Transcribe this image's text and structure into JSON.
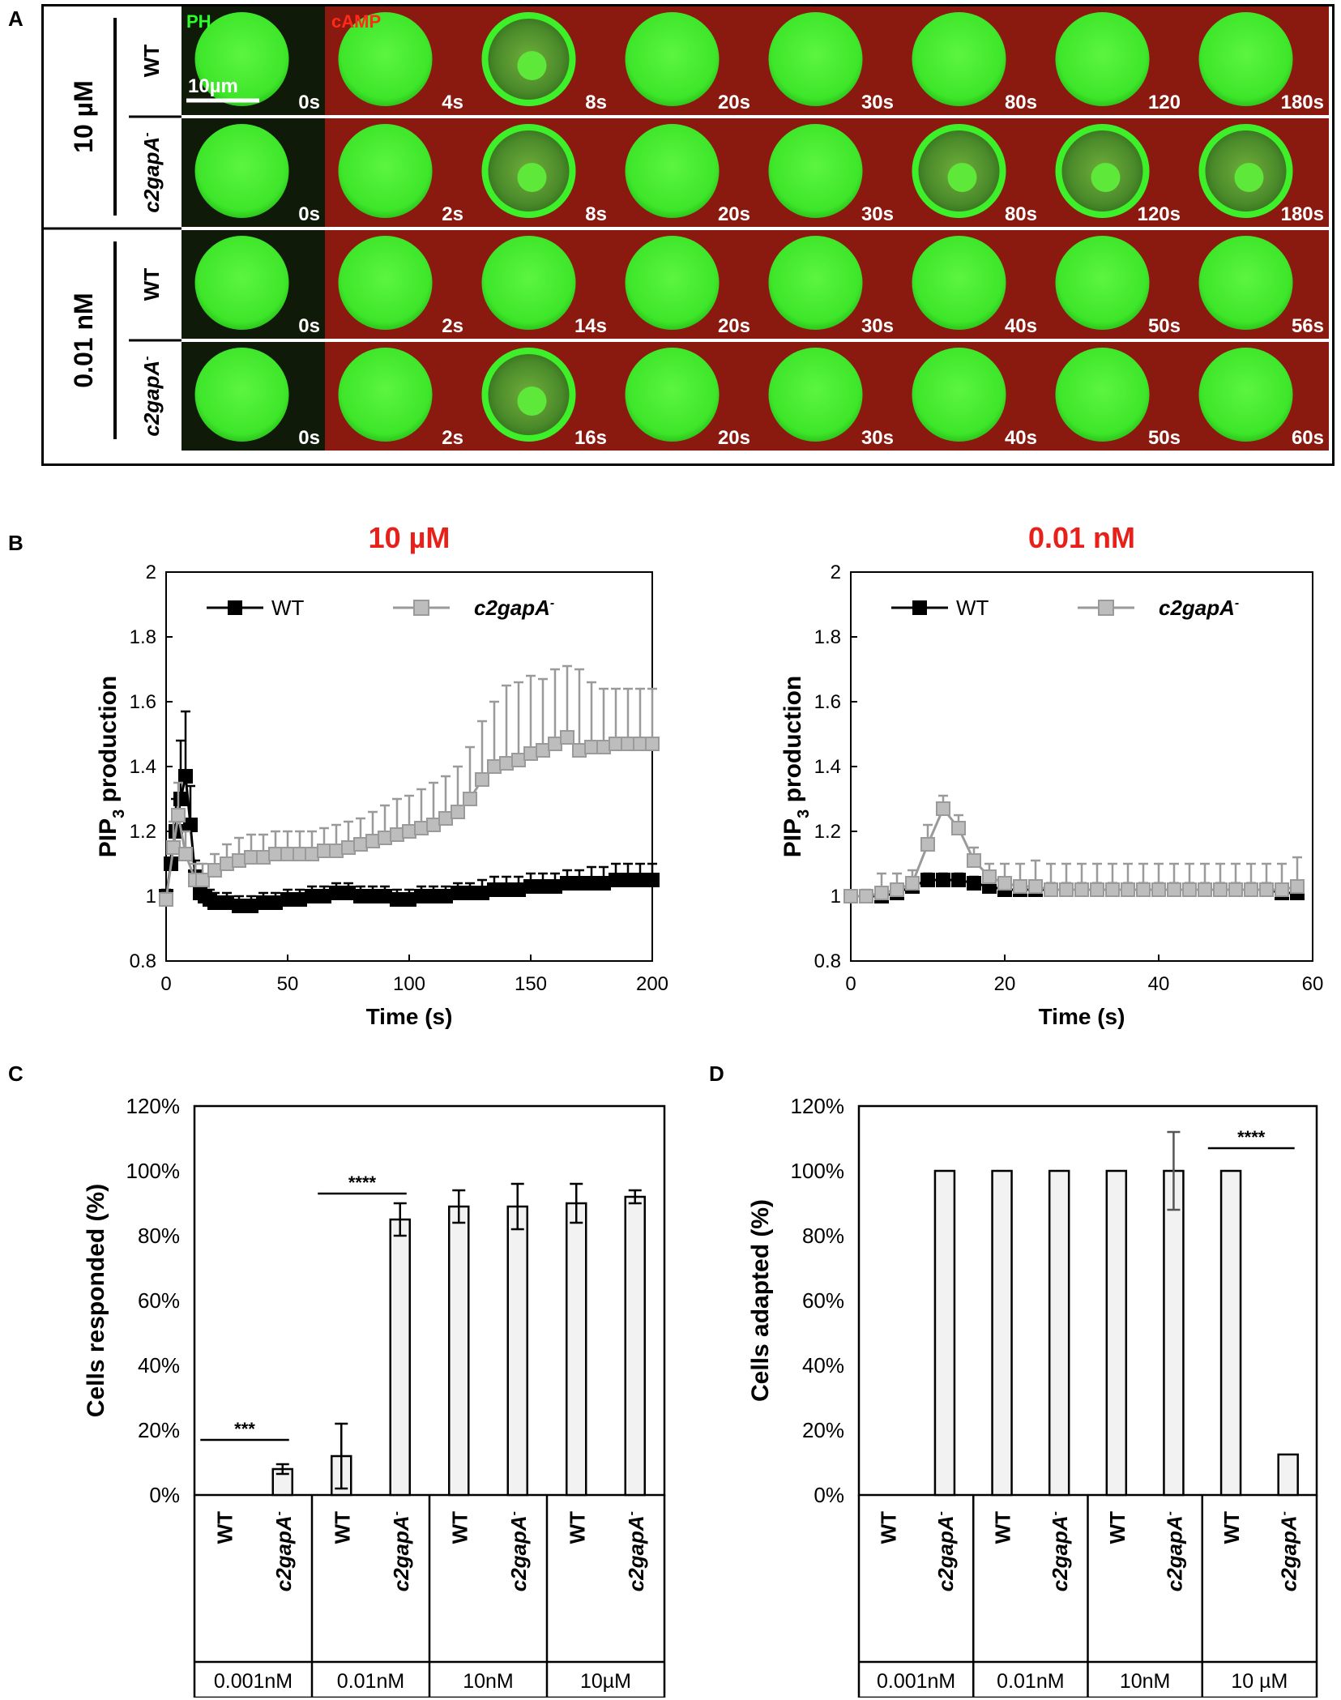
{
  "panel_labels": {
    "a": "A",
    "b": "B",
    "c": "C",
    "d": "D"
  },
  "panelA": {
    "rows": [
      {
        "condition": "10 µM",
        "strain": "WT",
        "times": [
          "0s",
          "4s",
          "8s",
          "20s",
          "30s",
          "80s",
          "120",
          "180s"
        ],
        "membrane_frames": [
          2
        ]
      },
      {
        "condition": "10 µM",
        "strain": "c2gapA-",
        "times": [
          "0s",
          "2s",
          "8s",
          "20s",
          "30s",
          "80s",
          "120s",
          "180s"
        ],
        "membrane_frames": [
          2,
          5,
          6,
          7
        ]
      },
      {
        "condition": "0.01 nM",
        "strain": "WT",
        "times": [
          "0s",
          "2s",
          "14s",
          "20s",
          "30s",
          "40s",
          "50s",
          "56s"
        ],
        "membrane_frames": []
      },
      {
        "condition": "0.01 nM",
        "strain": "c2gapA-",
        "times": [
          "0s",
          "2s",
          "16s",
          "20s",
          "30s",
          "40s",
          "50s",
          "60s"
        ],
        "membrane_frames": [
          2
        ]
      }
    ],
    "condition_labels": [
      "10 µM",
      "0.01 nM"
    ],
    "strain_wt": "WT",
    "strain_mut": "c2gapA",
    "superscript": "-",
    "channel_ph": "PH",
    "channel_camp": "cAMP",
    "scalebar_label": "10µm",
    "colors": {
      "cell": "#3ee62a",
      "bg_ph": "#101a08",
      "bg_camp": "#8a1a10",
      "ph_text": "#2aff2a",
      "camp_text": "#ff2a1a"
    }
  },
  "chart_data": [
    {
      "id": "B1",
      "type": "line",
      "title": "10 µM",
      "xlabel": "Time (s)",
      "ylabel": "PIP3 production",
      "ylabel_main": "PIP",
      "ylabel_sub": "3",
      "ylabel_rest": " production",
      "xlim": [
        0,
        200
      ],
      "ylim": [
        0.8,
        2
      ],
      "xticks": [
        0,
        50,
        100,
        150,
        200
      ],
      "yticks": [
        0.8,
        1,
        1.2,
        1.4,
        1.6,
        1.8,
        2
      ],
      "legend": [
        "WT",
        "c2gapA-"
      ],
      "series": [
        {
          "name": "WT",
          "x": [
            0,
            2,
            4,
            6,
            8,
            10,
            12,
            14,
            16,
            18,
            20,
            25,
            30,
            35,
            40,
            45,
            50,
            55,
            60,
            65,
            70,
            75,
            80,
            85,
            90,
            95,
            100,
            105,
            110,
            115,
            120,
            125,
            130,
            135,
            140,
            145,
            150,
            155,
            160,
            165,
            170,
            175,
            180,
            185,
            190,
            195,
            200
          ],
          "y": [
            1.0,
            1.1,
            1.2,
            1.3,
            1.37,
            1.22,
            1.06,
            1.01,
            1.0,
            0.99,
            0.98,
            0.98,
            0.97,
            0.97,
            0.98,
            0.98,
            0.99,
            0.99,
            1.0,
            1.0,
            1.01,
            1.01,
            1.0,
            1.0,
            1.0,
            0.99,
            0.99,
            1.0,
            1.0,
            1.0,
            1.01,
            1.01,
            1.01,
            1.02,
            1.02,
            1.02,
            1.03,
            1.03,
            1.03,
            1.04,
            1.04,
            1.04,
            1.04,
            1.05,
            1.05,
            1.05,
            1.05
          ],
          "err": [
            0.02,
            0.05,
            0.1,
            0.18,
            0.2,
            0.12,
            0.05,
            0.04,
            0.03,
            0.03,
            0.03,
            0.03,
            0.03,
            0.03,
            0.03,
            0.03,
            0.03,
            0.03,
            0.03,
            0.03,
            0.03,
            0.03,
            0.03,
            0.03,
            0.03,
            0.03,
            0.03,
            0.03,
            0.03,
            0.03,
            0.03,
            0.03,
            0.04,
            0.04,
            0.04,
            0.04,
            0.04,
            0.04,
            0.04,
            0.04,
            0.04,
            0.05,
            0.05,
            0.05,
            0.05,
            0.05,
            0.05
          ]
        },
        {
          "name": "c2gapA-",
          "x": [
            0,
            3,
            5,
            8,
            12,
            15,
            20,
            25,
            30,
            35,
            40,
            45,
            50,
            55,
            60,
            65,
            70,
            75,
            80,
            85,
            90,
            95,
            100,
            105,
            110,
            115,
            120,
            125,
            130,
            135,
            140,
            145,
            150,
            155,
            160,
            165,
            170,
            175,
            180,
            185,
            190,
            195,
            200
          ],
          "y": [
            0.99,
            1.15,
            1.25,
            1.13,
            1.05,
            1.05,
            1.08,
            1.1,
            1.11,
            1.12,
            1.12,
            1.13,
            1.13,
            1.13,
            1.13,
            1.14,
            1.14,
            1.15,
            1.16,
            1.17,
            1.18,
            1.19,
            1.2,
            1.21,
            1.22,
            1.24,
            1.26,
            1.3,
            1.36,
            1.4,
            1.41,
            1.42,
            1.44,
            1.45,
            1.47,
            1.49,
            1.45,
            1.46,
            1.46,
            1.47,
            1.47,
            1.47,
            1.47
          ],
          "err": [
            0.02,
            0.08,
            0.1,
            0.07,
            0.05,
            0.05,
            0.05,
            0.06,
            0.07,
            0.07,
            0.07,
            0.07,
            0.07,
            0.07,
            0.07,
            0.07,
            0.08,
            0.08,
            0.08,
            0.09,
            0.1,
            0.11,
            0.11,
            0.12,
            0.13,
            0.13,
            0.14,
            0.16,
            0.18,
            0.2,
            0.24,
            0.24,
            0.24,
            0.22,
            0.23,
            0.22,
            0.25,
            0.2,
            0.18,
            0.17,
            0.17,
            0.17,
            0.17
          ]
        }
      ]
    },
    {
      "id": "B2",
      "type": "line",
      "title": "0.01 nM",
      "xlabel": "Time (s)",
      "ylabel": "PIP3 production",
      "ylabel_main": "PIP",
      "ylabel_sub": "3",
      "ylabel_rest": " production",
      "xlim": [
        0,
        60
      ],
      "ylim": [
        0.8,
        2
      ],
      "xticks": [
        0,
        20,
        40,
        60
      ],
      "yticks": [
        0.8,
        1,
        1.2,
        1.4,
        1.6,
        1.8,
        2
      ],
      "legend": [
        "WT",
        "c2gapA-"
      ],
      "series": [
        {
          "name": "WT",
          "x": [
            0,
            2,
            4,
            6,
            8,
            10,
            12,
            14,
            16,
            18,
            20,
            22,
            24,
            26,
            28,
            30,
            32,
            34,
            36,
            38,
            40,
            42,
            44,
            46,
            48,
            50,
            52,
            54,
            56,
            58
          ],
          "y": [
            1.0,
            1.0,
            1.0,
            1.01,
            1.03,
            1.05,
            1.05,
            1.05,
            1.04,
            1.03,
            1.02,
            1.02,
            1.02,
            1.02,
            1.02,
            1.02,
            1.02,
            1.02,
            1.02,
            1.02,
            1.02,
            1.02,
            1.02,
            1.02,
            1.02,
            1.02,
            1.02,
            1.02,
            1.01,
            1.01
          ],
          "err": [
            0.01,
            0.01,
            0.01,
            0.02,
            0.02,
            0.02,
            0.02,
            0.02,
            0.02,
            0.02,
            0.02,
            0.02,
            0.02,
            0.02,
            0.02,
            0.02,
            0.02,
            0.02,
            0.02,
            0.02,
            0.02,
            0.02,
            0.02,
            0.02,
            0.02,
            0.02,
            0.02,
            0.02,
            0.02,
            0.02
          ]
        },
        {
          "name": "c2gapA-",
          "x": [
            0,
            2,
            4,
            6,
            8,
            10,
            12,
            14,
            16,
            18,
            20,
            22,
            24,
            26,
            28,
            30,
            32,
            34,
            36,
            38,
            40,
            42,
            44,
            46,
            48,
            50,
            52,
            54,
            56,
            58
          ],
          "y": [
            1.0,
            1.0,
            1.01,
            1.02,
            1.04,
            1.16,
            1.27,
            1.21,
            1.11,
            1.06,
            1.04,
            1.03,
            1.03,
            1.02,
            1.02,
            1.02,
            1.02,
            1.02,
            1.02,
            1.02,
            1.02,
            1.02,
            1.02,
            1.02,
            1.02,
            1.02,
            1.02,
            1.02,
            1.02,
            1.03
          ],
          "err": [
            0.01,
            0.02,
            0.06,
            0.05,
            0.04,
            0.06,
            0.04,
            0.04,
            0.04,
            0.04,
            0.06,
            0.07,
            0.08,
            0.08,
            0.08,
            0.08,
            0.08,
            0.08,
            0.08,
            0.08,
            0.08,
            0.08,
            0.08,
            0.08,
            0.08,
            0.08,
            0.08,
            0.08,
            0.08,
            0.09
          ]
        }
      ]
    },
    {
      "id": "C",
      "type": "bar",
      "ylabel": "Cells responded (%)",
      "ylim": [
        0,
        120
      ],
      "yticks": [
        "0%",
        "20%",
        "40%",
        "60%",
        "80%",
        "100%",
        "120%"
      ],
      "groups": [
        "0.001nM",
        "0.01nM",
        "10nM",
        "10µM"
      ],
      "categories": [
        "WT",
        "c2gapA-",
        "WT",
        "c2gapA-",
        "WT",
        "c2gapA-",
        "WT",
        "c2gapA-"
      ],
      "values": [
        0,
        8,
        12,
        85,
        89,
        89,
        90,
        92
      ],
      "errors": [
        0,
        1.5,
        10,
        5,
        5,
        7,
        6,
        2
      ],
      "significance": [
        {
          "from": 0,
          "to": 1,
          "label": "***",
          "y": 17
        },
        {
          "from": 2,
          "to": 3,
          "label": "****",
          "y": 93
        }
      ]
    },
    {
      "id": "D",
      "type": "bar",
      "ylabel": "Cells adapted (%)",
      "ylim": [
        0,
        120
      ],
      "yticks": [
        "0%",
        "20%",
        "40%",
        "60%",
        "80%",
        "100%",
        "120%"
      ],
      "groups": [
        "0.001nM",
        "0.01nM",
        "10nM",
        "10 µM"
      ],
      "categories": [
        "WT",
        "c2gapA-",
        "WT",
        "c2gapA-",
        "WT",
        "c2gapA-",
        "WT",
        "c2gapA-"
      ],
      "values": [
        0,
        100,
        100,
        100,
        100,
        100,
        100,
        12.5
      ],
      "errors": [
        0,
        0,
        0,
        0,
        0,
        12,
        0,
        0
      ],
      "significance": [
        {
          "from": 6,
          "to": 7,
          "label": "****",
          "y": 107
        }
      ]
    }
  ]
}
